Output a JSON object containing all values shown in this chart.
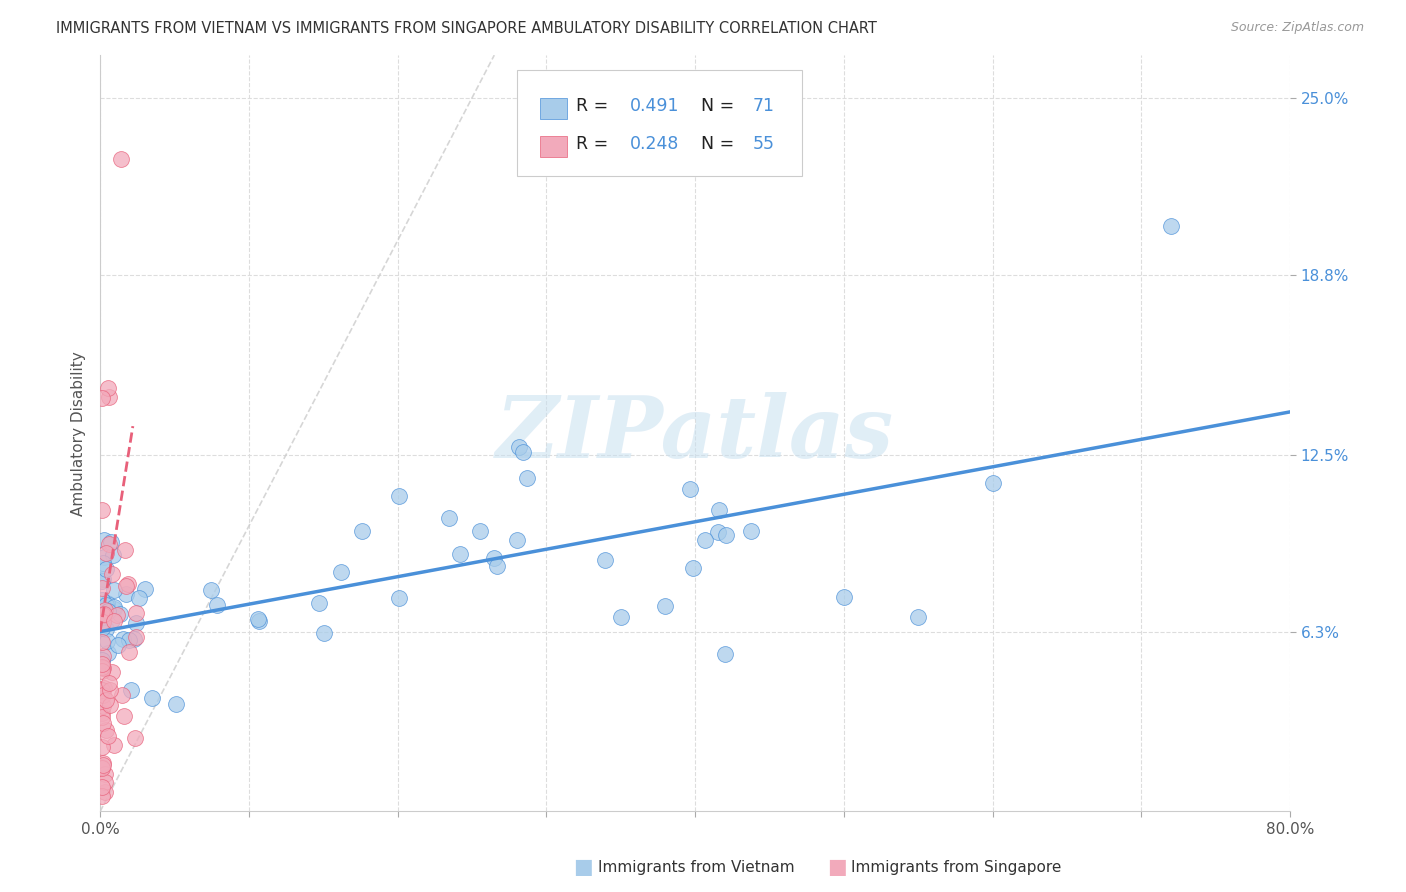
{
  "title": "IMMIGRANTS FROM VIETNAM VS IMMIGRANTS FROM SINGAPORE AMBULATORY DISABILITY CORRELATION CHART",
  "source": "Source: ZipAtlas.com",
  "xlabel_vietnam": "Immigrants from Vietnam",
  "xlabel_singapore": "Immigrants from Singapore",
  "ylabel": "Ambulatory Disability",
  "xlim": [
    0.0,
    0.8
  ],
  "ylim": [
    0.0,
    0.265
  ],
  "xtick_labels": [
    "0.0%",
    "",
    "",
    "",
    "",
    "",
    "",
    "",
    "80.0%"
  ],
  "xtick_vals": [
    0.0,
    0.1,
    0.2,
    0.3,
    0.4,
    0.5,
    0.6,
    0.7,
    0.8
  ],
  "ytick_labels": [
    "6.3%",
    "12.5%",
    "18.8%",
    "25.0%"
  ],
  "ytick_vals": [
    0.063,
    0.125,
    0.188,
    0.25
  ],
  "R_vietnam": 0.491,
  "N_vietnam": 71,
  "R_singapore": 0.248,
  "N_singapore": 55,
  "color_vietnam": "#A8CCEA",
  "color_singapore": "#F2AABB",
  "color_trendline_vietnam": "#4A90D9",
  "color_trendline_singapore": "#E8607A",
  "color_diagonal": "#cccccc",
  "watermark_color": "#C8E0F0",
  "watermark_text": "ZIPatlas",
  "background_color": "#ffffff",
  "grid_color": "#dddddd",
  "title_color": "#333333",
  "source_color": "#999999",
  "ytick_color": "#4A90D9",
  "legend_r_color": "#4A90D9",
  "legend_n_color": "#4A90D9",
  "trendline_vietnam_x0": 0.0,
  "trendline_vietnam_x1": 0.8,
  "trendline_vietnam_y0": 0.063,
  "trendline_vietnam_y1": 0.14,
  "trendline_singapore_x0": 0.0,
  "trendline_singapore_x1": 0.022,
  "trendline_singapore_y0": 0.063,
  "trendline_singapore_y1": 0.135
}
